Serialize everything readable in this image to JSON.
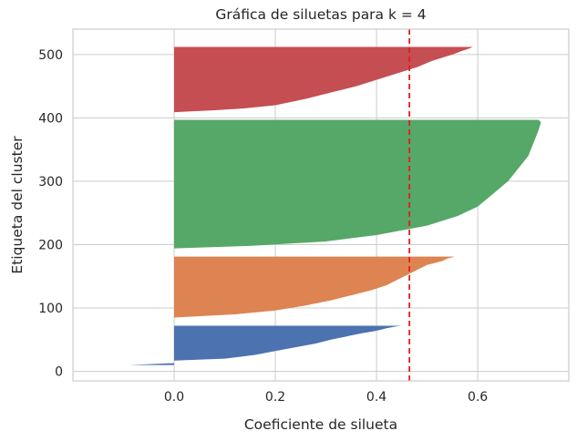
{
  "chart_data": {
    "type": "area",
    "title": "Gráfica de siluetas para k = 4",
    "xlabel": "Coeficiente de silueta",
    "ylabel": "Etiqueta del cluster",
    "xlim": [
      -0.2,
      0.78
    ],
    "ylim": [
      -15,
      540
    ],
    "xticks": [
      0.0,
      0.2,
      0.4,
      0.6
    ],
    "xtick_labels": [
      "0.0",
      "0.2",
      "0.4",
      "0.6"
    ],
    "yticks": [
      0,
      100,
      200,
      300,
      400,
      500
    ],
    "ytick_labels": [
      "0",
      "100",
      "200",
      "300",
      "400",
      "500"
    ],
    "grid": true,
    "average_silhouette": 0.465,
    "average_line_color": "#e41a1c",
    "series": [
      {
        "cluster": 0,
        "color": "#4c72b0",
        "profile": [
          [
            10,
            -0.09
          ],
          [
            13,
            0.0
          ],
          [
            17,
            0.0
          ],
          [
            20,
            0.1
          ],
          [
            26,
            0.16
          ],
          [
            32,
            0.2
          ],
          [
            38,
            0.24
          ],
          [
            44,
            0.28
          ],
          [
            50,
            0.31
          ],
          [
            55,
            0.34
          ],
          [
            60,
            0.37
          ],
          [
            64,
            0.4
          ],
          [
            68,
            0.42
          ],
          [
            71,
            0.44
          ],
          [
            72,
            0.45
          ]
        ]
      },
      {
        "cluster": 1,
        "color": "#dd8452",
        "profile": [
          [
            85,
            0.0
          ],
          [
            90,
            0.12
          ],
          [
            96,
            0.2
          ],
          [
            104,
            0.26
          ],
          [
            112,
            0.31
          ],
          [
            120,
            0.35
          ],
          [
            128,
            0.39
          ],
          [
            136,
            0.42
          ],
          [
            144,
            0.44
          ],
          [
            152,
            0.46
          ],
          [
            160,
            0.48
          ],
          [
            168,
            0.5
          ],
          [
            174,
            0.53
          ],
          [
            178,
            0.54
          ],
          [
            181,
            0.555
          ]
        ]
      },
      {
        "cluster": 2,
        "color": "#55a868",
        "profile": [
          [
            194,
            0.0
          ],
          [
            198,
            0.15
          ],
          [
            205,
            0.3
          ],
          [
            215,
            0.4
          ],
          [
            230,
            0.5
          ],
          [
            245,
            0.56
          ],
          [
            260,
            0.6
          ],
          [
            280,
            0.63
          ],
          [
            300,
            0.66
          ],
          [
            320,
            0.68
          ],
          [
            340,
            0.7
          ],
          [
            360,
            0.71
          ],
          [
            380,
            0.72
          ],
          [
            393,
            0.725
          ],
          [
            397,
            0.72
          ]
        ]
      },
      {
        "cluster": 3,
        "color": "#c44e52",
        "profile": [
          [
            409,
            0.0
          ],
          [
            412,
            0.08
          ],
          [
            415,
            0.14
          ],
          [
            420,
            0.2
          ],
          [
            430,
            0.26
          ],
          [
            440,
            0.31
          ],
          [
            450,
            0.36
          ],
          [
            460,
            0.4
          ],
          [
            470,
            0.44
          ],
          [
            480,
            0.48
          ],
          [
            490,
            0.51
          ],
          [
            500,
            0.55
          ],
          [
            506,
            0.57
          ],
          [
            510,
            0.585
          ],
          [
            512,
            0.59
          ]
        ]
      }
    ]
  }
}
